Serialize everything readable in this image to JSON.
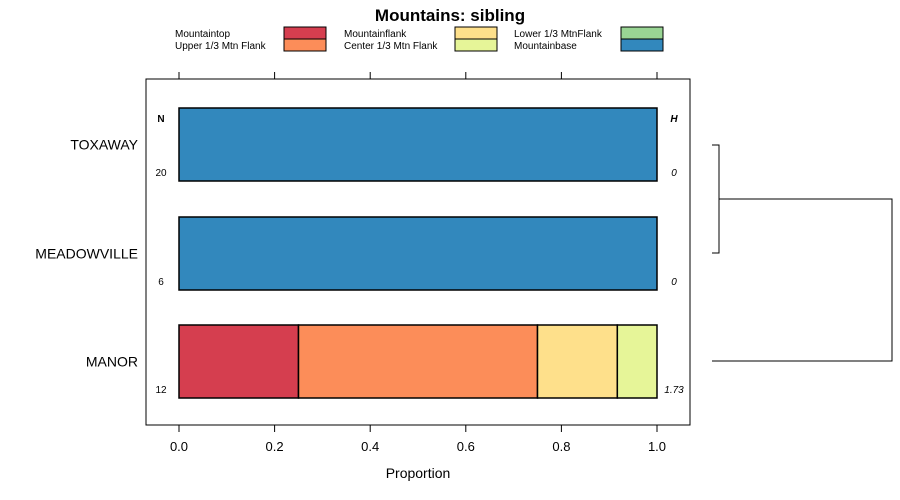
{
  "chart_data": {
    "type": "bar",
    "orientation": "horizontal",
    "stacked": true,
    "title": "Mountains: sibling",
    "xlabel": "Proportion",
    "ylabel": "",
    "xlim": [
      0,
      1
    ],
    "xticks": [
      "0.0",
      "0.2",
      "0.4",
      "0.6",
      "0.8",
      "1.0"
    ],
    "n_header": "N",
    "h_header": "H",
    "legend_position": "top",
    "series": [
      {
        "name": "Mountaintop",
        "color": "#d53e4f"
      },
      {
        "name": "Upper 1/3 Mtn Flank",
        "color": "#fc8d59"
      },
      {
        "name": "Mountainflank",
        "color": "#fee08b"
      },
      {
        "name": "Center 1/3 Mtn Flank",
        "color": "#e6f598"
      },
      {
        "name": "Lower 1/3 MtnFlank",
        "color": "#99d594"
      },
      {
        "name": "Mountainbase",
        "color": "#3288bd"
      }
    ],
    "categories": [
      {
        "label": "TOXAWAY",
        "n": "20",
        "h": "0",
        "values": [
          0,
          0,
          0,
          0,
          0,
          1.0
        ]
      },
      {
        "label": "MEADOWVILLE",
        "n": "6",
        "h": "0",
        "values": [
          0,
          0,
          0,
          0,
          0,
          1.0
        ]
      },
      {
        "label": "MANOR",
        "n": "12",
        "h": "1.73",
        "values": [
          0.25,
          0.5,
          0.167,
          0.083,
          0,
          0
        ]
      }
    ],
    "dendrogram": true
  }
}
